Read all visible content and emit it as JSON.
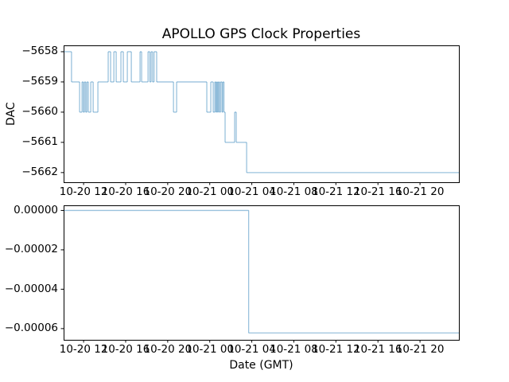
{
  "figure": {
    "background": "#ffffff",
    "text_color": "#000000",
    "spine_color": "#000000",
    "line_color": "#1f77b4",
    "line_opacity": 0.45
  },
  "chart_data": {
    "type": "line",
    "title": "APOLLO GPS Clock Properties",
    "xlabel": "Date (GMT)",
    "x_unit": "hours since 10-20 00:00 GMT",
    "legend": "none",
    "grid": false,
    "xlim": [
      10.1,
      47.7
    ],
    "xtick_hours": [
      12,
      16,
      20,
      24,
      28,
      32,
      36,
      40,
      44
    ],
    "xtick_labels": [
      "10-20 12",
      "10-20 16",
      "10-20 20",
      "10-21 00",
      "10-21 04",
      "10-21 08",
      "10-21 12",
      "10-21 16",
      "10-21 20"
    ],
    "subplots": [
      {
        "name": "dac",
        "ylabel": "DAC",
        "ylim": [
          -5662.32,
          -5657.79
        ],
        "ytick_values": [
          -5658,
          -5659,
          -5660,
          -5661,
          -5662
        ],
        "ytick_labels": [
          "−5658",
          "−5659",
          "−5660",
          "−5661",
          "−5662"
        ],
        "step_series": [
          [
            10.15,
            -5658
          ],
          [
            10.85,
            -5659
          ],
          [
            11.62,
            -5660
          ],
          [
            11.85,
            -5659
          ],
          [
            11.97,
            -5660
          ],
          [
            12.08,
            -5659
          ],
          [
            12.2,
            -5660
          ],
          [
            12.32,
            -5659
          ],
          [
            12.45,
            -5660
          ],
          [
            12.68,
            -5659
          ],
          [
            12.91,
            -5660
          ],
          [
            13.36,
            -5659
          ],
          [
            14.34,
            -5658
          ],
          [
            14.57,
            -5659
          ],
          [
            14.88,
            -5658
          ],
          [
            15.1,
            -5659
          ],
          [
            15.55,
            -5658
          ],
          [
            15.78,
            -5659
          ],
          [
            16.16,
            -5658
          ],
          [
            16.54,
            -5659
          ],
          [
            17.37,
            -5658
          ],
          [
            17.52,
            -5659
          ],
          [
            18.13,
            -5658
          ],
          [
            18.3,
            -5659
          ],
          [
            18.42,
            -5658
          ],
          [
            18.56,
            -5659
          ],
          [
            18.7,
            -5658
          ],
          [
            18.95,
            -5659
          ],
          [
            20.55,
            -5660
          ],
          [
            20.85,
            -5659
          ],
          [
            23.72,
            -5660
          ],
          [
            24.1,
            -5659
          ],
          [
            24.33,
            -5660
          ],
          [
            24.48,
            -5659
          ],
          [
            24.58,
            -5660
          ],
          [
            24.66,
            -5659
          ],
          [
            24.74,
            -5660
          ],
          [
            24.82,
            -5659
          ],
          [
            24.92,
            -5660
          ],
          [
            25.02,
            -5659
          ],
          [
            25.16,
            -5660
          ],
          [
            25.24,
            -5659
          ],
          [
            25.35,
            -5660
          ],
          [
            25.46,
            -5661
          ],
          [
            26.37,
            -5660
          ],
          [
            26.52,
            -5661
          ],
          [
            27.51,
            -5662
          ],
          [
            47.7,
            -5662
          ]
        ]
      },
      {
        "name": "clock-offset",
        "ylabel": "",
        "ylim": [
          -6.57e-05,
          2.6e-06
        ],
        "ytick_values": [
          0,
          -2e-05,
          -4e-05,
          -6e-05
        ],
        "ytick_labels": [
          "0.00000",
          "−0.00002",
          "−0.00004",
          "−0.00006"
        ],
        "step_series": [
          [
            10.15,
            0
          ],
          [
            27.7,
            -6.22e-05
          ],
          [
            47.7,
            -6.22e-05
          ]
        ]
      }
    ]
  }
}
